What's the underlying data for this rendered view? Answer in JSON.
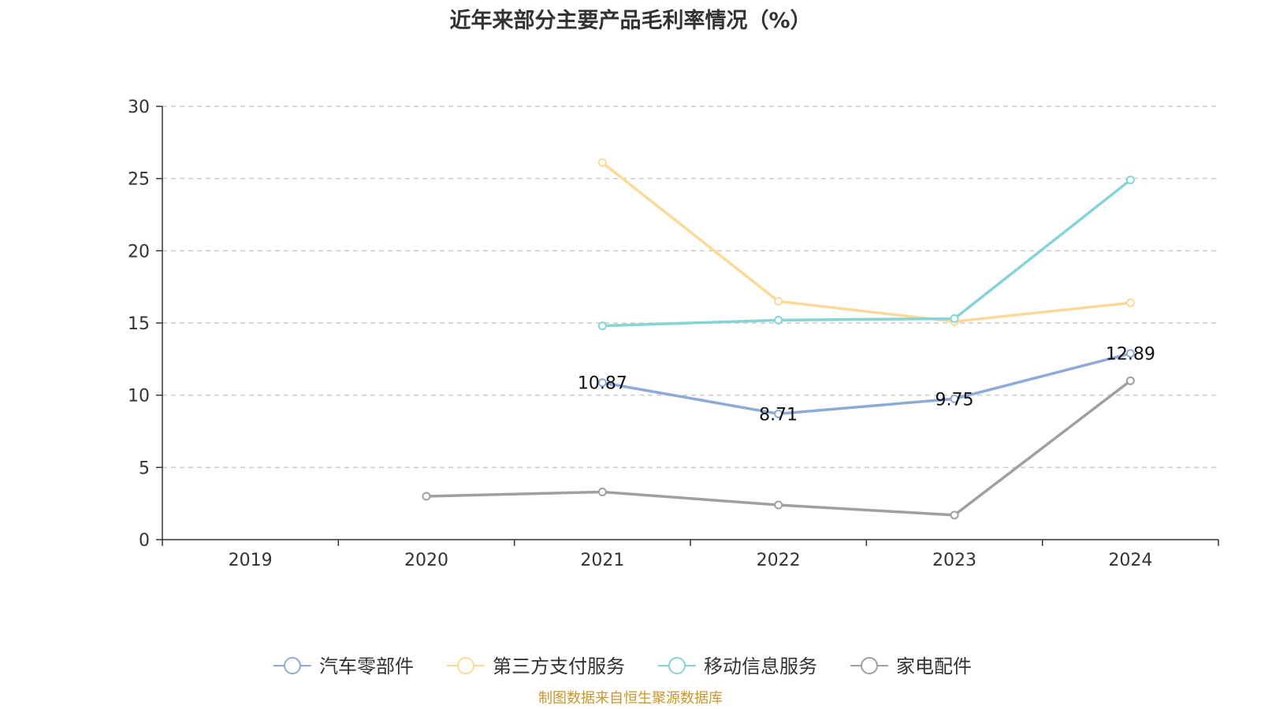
{
  "chart_data": {
    "type": "line",
    "title": "近年来部分主要产品毛利率情况（%）",
    "categories": [
      "2019",
      "2020",
      "2021",
      "2022",
      "2023",
      "2024"
    ],
    "ylim": [
      0,
      30
    ],
    "yticks": [
      0,
      5,
      10,
      15,
      20,
      25,
      30
    ],
    "grid": true,
    "legend_position": "bottom",
    "series": [
      {
        "name": "汽车零部件",
        "color": "#8eaad6",
        "values": [
          null,
          null,
          10.87,
          8.71,
          9.75,
          12.89
        ],
        "labels": [
          null,
          null,
          "10.87",
          "8.71",
          "9.75",
          "12.89"
        ]
      },
      {
        "name": "第三方支付服务",
        "color": "#fcd998",
        "values": [
          null,
          null,
          26.1,
          16.5,
          15.1,
          16.4
        ]
      },
      {
        "name": "移动信息服务",
        "color": "#86d4d6",
        "values": [
          null,
          null,
          14.8,
          15.2,
          15.3,
          24.9
        ]
      },
      {
        "name": "家电配件",
        "color": "#a0a0a0",
        "values": [
          null,
          3.0,
          3.3,
          2.4,
          1.7,
          11.0
        ]
      }
    ]
  },
  "source": "制图数据来自恒生聚源数据库"
}
